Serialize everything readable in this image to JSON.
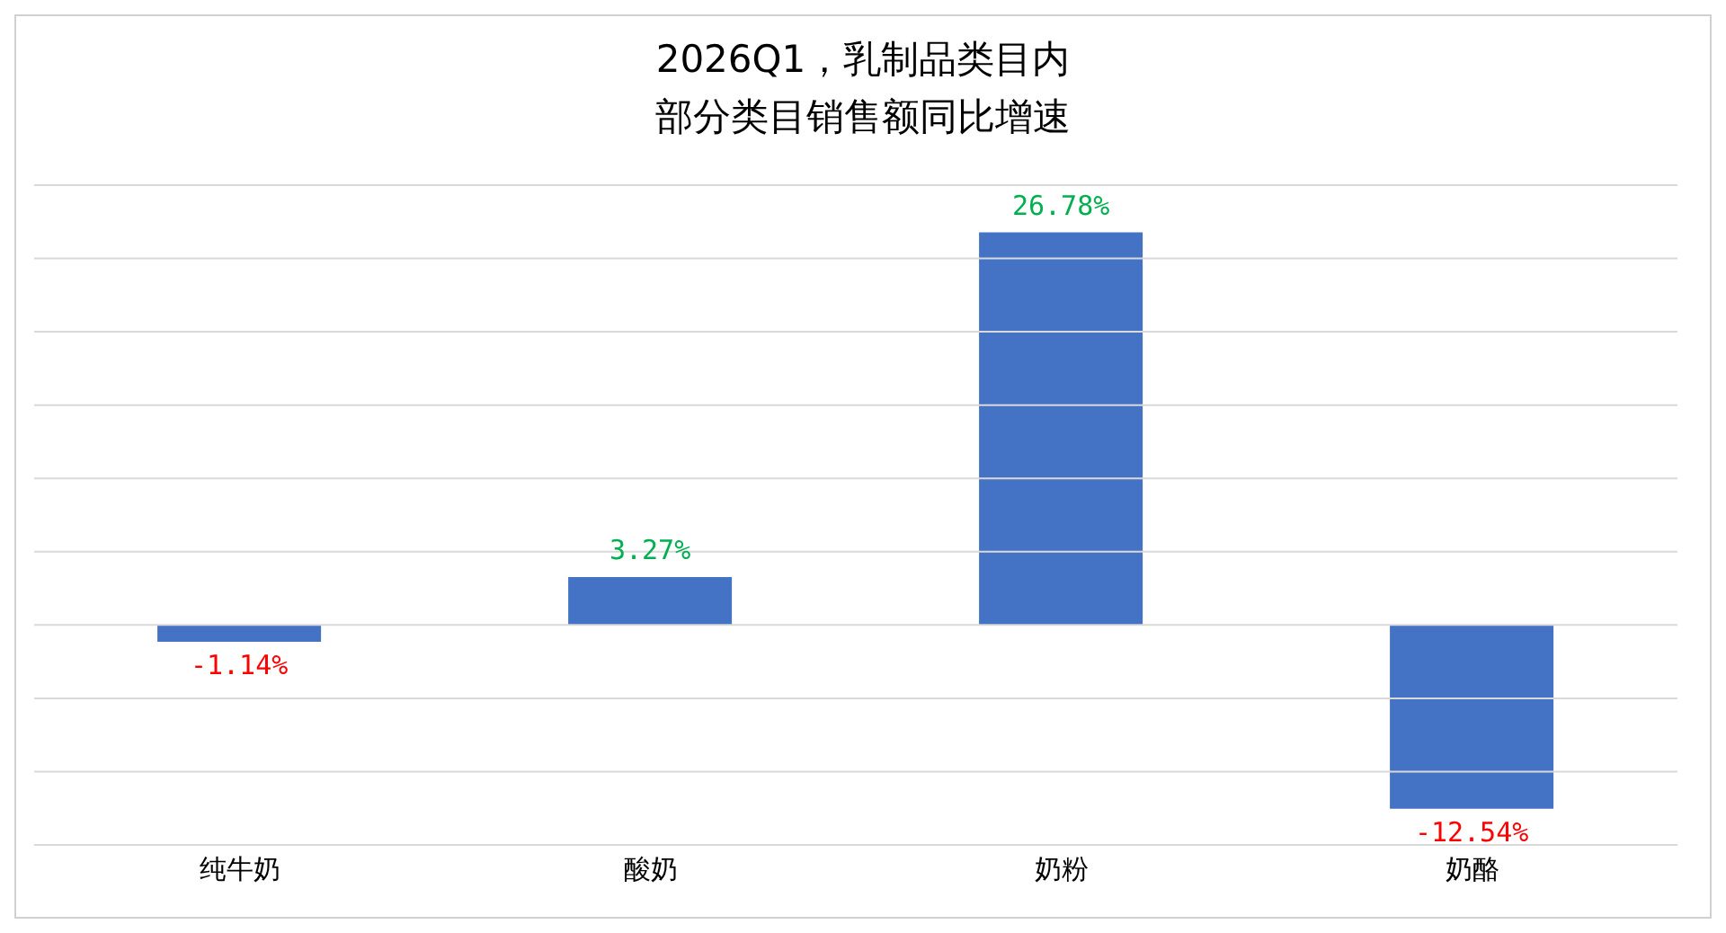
{
  "chart_data": {
    "type": "bar",
    "title": "2026Q1，乳制品类目内",
    "subtitle": "部分类目销售额同比增速",
    "categories": [
      "纯牛奶",
      "酸奶",
      "奶粉",
      "奶酪"
    ],
    "values": [
      -1.14,
      3.27,
      26.78,
      -12.54
    ],
    "color": "#4472c4",
    "value_labels": [
      "-1.14%",
      "3.27%",
      "26.78%",
      "-12.54%"
    ],
    "ylim": [
      -15,
      30
    ],
    "yticks": [
      {
        "value": -15,
        "label": null
      },
      {
        "value": -10,
        "label": null
      },
      {
        "value": -5,
        "label": null
      },
      {
        "value": 0,
        "label": null
      },
      {
        "value": 5,
        "label": null
      },
      {
        "value": 10,
        "label": null
      },
      {
        "value": 15,
        "label": null
      },
      {
        "value": 20,
        "label": null
      },
      {
        "value": 25,
        "label": null
      },
      {
        "value": 30,
        "label": null
      }
    ],
    "grid": "y",
    "tick_labels": "x"
  }
}
